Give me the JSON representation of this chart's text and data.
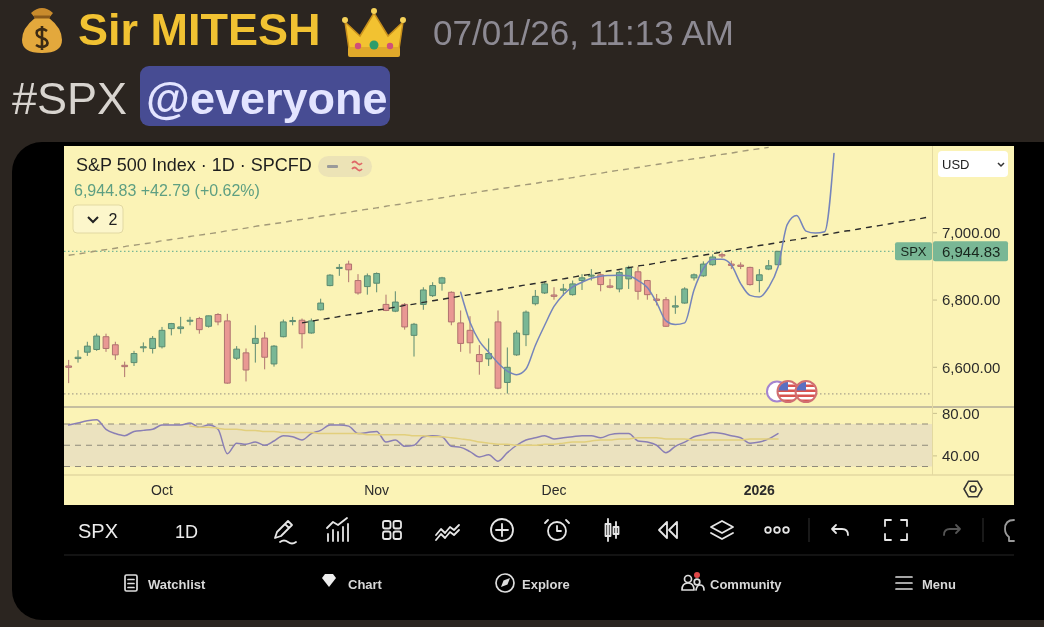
{
  "chart_data": [
    {
      "type": "other",
      "title": "Sir MITESH",
      "subtitle": "07/01/26, 11:13 AM",
      "annotations": [
        "#SPX",
        "@everyone"
      ]
    },
    {
      "type": "candlestick",
      "title": "S&P 500 Index · 1D · SPCFD",
      "subtitle": "6,944.83 +42.79 (+0.62%)",
      "categories": [
        null,
        null,
        null,
        null,
        null,
        null,
        null,
        null,
        null,
        null,
        null,
        null,
        null,
        null,
        null,
        null,
        null,
        null,
        null,
        null,
        null,
        null,
        null,
        null,
        null,
        null,
        null,
        null,
        null,
        null,
        null,
        null,
        null,
        null,
        null,
        null,
        null,
        null,
        null,
        null,
        null,
        null,
        null,
        null,
        null,
        null,
        null,
        null,
        null,
        null,
        null,
        null,
        null,
        null,
        null,
        null,
        null,
        null,
        null,
        null,
        null,
        null,
        null,
        null,
        null,
        null,
        null,
        null,
        null,
        null,
        null,
        null,
        null,
        null,
        null,
        null,
        null,
        null,
        null,
        null,
        null,
        null,
        null,
        null,
        null,
        null,
        null,
        null,
        null,
        null,
        null,
        null,
        null
      ],
      "ylim": [
        6482,
        7258
      ],
      "yticks": [
        {
          "value": 6600,
          "label": "6,600.00"
        },
        {
          "value": 6800,
          "label": "6,800.00"
        },
        {
          "value": 7000,
          "label": "7,000.00"
        }
      ],
      "tick_labels": "y",
      "series": [
        {
          "type": "candlestick",
          "ohlc": [
            [
              6604,
              6622,
              6553,
              6600
            ],
            [
              6626,
              6651,
              6614,
              6630
            ],
            [
              6645,
              6676,
              6634,
              6663
            ],
            [
              6653,
              6700,
              6649,
              6693
            ],
            [
              6691,
              6700,
              6646,
              6656
            ],
            [
              6667,
              6676,
              6622,
              6637
            ],
            [
              6606,
              6617,
              6571,
              6602
            ],
            [
              6614,
              6649,
              6604,
              6641
            ],
            [
              6658,
              6674,
              6645,
              6661
            ],
            [
              6656,
              6693,
              6641,
              6686
            ],
            [
              6661,
              6720,
              6656,
              6710
            ],
            [
              6715,
              6732,
              6695,
              6730
            ],
            [
              6715,
              6750,
              6700,
              6720
            ],
            [
              6737,
              6750,
              6725,
              6740
            ],
            [
              6745,
              6750,
              6700,
              6712
            ],
            [
              6722,
              6754,
              6718,
              6753
            ],
            [
              6757,
              6761,
              6725,
              6735
            ],
            [
              6738,
              6759,
              6551,
              6553
            ],
            [
              6627,
              6663,
              6622,
              6654
            ],
            [
              6643,
              6656,
              6558,
              6592
            ],
            [
              6671,
              6725,
              6614,
              6686
            ],
            [
              6687,
              6705,
              6594,
              6630
            ],
            [
              6610,
              6666,
              6602,
              6663
            ],
            [
              6691,
              6742,
              6689,
              6735
            ],
            [
              6736,
              6750,
              6725,
              6739
            ],
            [
              6740,
              6745,
              6656,
              6700
            ],
            [
              6702,
              6745,
              6700,
              6738
            ],
            [
              6771,
              6804,
              6769,
              6791
            ],
            [
              6843,
              6877,
              6841,
              6874
            ],
            [
              6894,
              6907,
              6872,
              6897
            ],
            [
              6907,
              6917,
              6853,
              6890
            ],
            [
              6858,
              6877,
              6816,
              6821
            ],
            [
              6840,
              6879,
              6816,
              6872
            ],
            [
              6850,
              6882,
              6823,
              6879
            ],
            [
              6787,
              6816,
              6767,
              6769
            ],
            [
              6767,
              6826,
              6764,
              6794
            ],
            [
              6787,
              6791,
              6712,
              6720
            ],
            [
              6695,
              6732,
              6632,
              6728
            ],
            [
              6787,
              6838,
              6771,
              6830
            ],
            [
              6813,
              6853,
              6809,
              6843
            ],
            [
              6850,
              6869,
              6828,
              6866
            ],
            [
              6823,
              6826,
              6725,
              6735
            ],
            [
              6732,
              6769,
              6646,
              6671
            ],
            [
              6710,
              6752,
              6641,
              6673
            ],
            [
              6638,
              6666,
              6578,
              6617
            ],
            [
              6625,
              6686,
              6604,
              6641
            ],
            [
              6735,
              6769,
              6535,
              6538
            ],
            [
              6555,
              6659,
              6522,
              6600
            ],
            [
              6637,
              6710,
              6634,
              6702
            ],
            [
              6697,
              6769,
              6663,
              6764
            ],
            [
              6789,
              6830,
              6784,
              6811
            ],
            [
              6821,
              6856,
              6818,
              6848
            ],
            [
              6815,
              6838,
              6801,
              6811
            ],
            [
              6829,
              6848,
              6813,
              6833
            ],
            [
              6816,
              6858,
              6813,
              6848
            ],
            [
              6858,
              6877,
              6830,
              6866
            ],
            [
              6871,
              6892,
              6858,
              6874
            ],
            [
              6875,
              6879,
              6826,
              6846
            ],
            [
              6842,
              6863,
              6835,
              6838
            ],
            [
              6833,
              6887,
              6823,
              6882
            ],
            [
              6863,
              6902,
              6833,
              6897
            ],
            [
              6884,
              6899,
              6801,
              6826
            ],
            [
              6858,
              6860,
              6801,
              6816
            ],
            [
              6803,
              6818,
              6784,
              6799
            ],
            [
              6801,
              6809,
              6720,
              6722
            ],
            [
              6779,
              6813,
              6759,
              6783
            ],
            [
              6791,
              6838,
              6789,
              6833
            ],
            [
              6866,
              6879,
              6858,
              6875
            ],
            [
              6872,
              6915,
              6869,
              6907
            ],
            [
              6905,
              6936,
              6902,
              6928
            ],
            [
              6935,
              6941,
              6925,
              6931
            ],
            [
              6907,
              6917,
              6892,
              6903
            ],
            [
              6904,
              6912,
              6892,
              6900
            ],
            [
              6897,
              6899,
              6843,
              6846
            ],
            [
              6858,
              6892,
              6823,
              6875
            ],
            [
              6892,
              6919,
              6889,
              6902
            ],
            [
              6905,
              6946,
              6905,
              6944.83
            ],
            null,
            null,
            null,
            null,
            null,
            null,
            null,
            null,
            null,
            null,
            null,
            null,
            null,
            null,
            null,
            null
          ],
          "colors": [
            "#e99893",
            "#79b795",
            "#79b795",
            "#79b795",
            "#e99893",
            "#e99893",
            "#e99893",
            "#79b795",
            "#79b795",
            "#79b795",
            "#79b795",
            "#79b795",
            "#79b795",
            "#79b795",
            "#e99893",
            "#79b795",
            "#e99893",
            "#e99893",
            "#79b795",
            "#e99893",
            "#79b795",
            "#e99893",
            "#79b795",
            "#79b795",
            "#79b795",
            "#e99893",
            "#79b795",
            "#79b795",
            "#79b795",
            "#79b795",
            "#e99893",
            "#e99893",
            "#79b795",
            "#79b795",
            "#e99893",
            "#79b795",
            "#e99893",
            "#79b795",
            "#79b795",
            "#79b795",
            "#79b795",
            "#e99893",
            "#e99893",
            "#e99893",
            "#e99893",
            "#79b795",
            "#e99893",
            "#79b795",
            "#79b795",
            "#79b795",
            "#79b795",
            "#79b795",
            "#e99893",
            "#79b795",
            "#79b795",
            "#79b795",
            "#79b795",
            "#e99893",
            "#e99893",
            "#79b795",
            "#79b795",
            "#e99893",
            "#e99893",
            "#e99893",
            "#e99893",
            "#79b795",
            "#79b795",
            "#79b795",
            "#79b795",
            "#79b795",
            "#e99893",
            "#e99893",
            "#e99893",
            "#e99893",
            "#79b795",
            "#79b795",
            "#79b795",
            null,
            null,
            null,
            null,
            null,
            null,
            null,
            null,
            null,
            null,
            null,
            null,
            null,
            null,
            null,
            null
          ]
        },
        {
          "type": "line",
          "color": "#a39a78",
          "line_style": "dashed",
          "values": [
            6933,
            6937,
            6941,
            6946,
            6950,
            6954,
            6959,
            6963,
            6967,
            6971,
            6976,
            6980,
            6984,
            6989,
            6993,
            6997,
            7001,
            7006,
            7010,
            7014,
            7019,
            7023,
            7027,
            7031,
            7036,
            7040,
            7044,
            7049,
            7053,
            7057,
            7061,
            7066,
            7070,
            7074,
            7079,
            7083,
            7087,
            7092,
            7096,
            7100,
            7104,
            7109,
            7113,
            7117,
            7122,
            7126,
            7130,
            7134,
            7139,
            7143,
            7147,
            7152,
            7156,
            7160,
            7164,
            7169,
            7173,
            7177,
            7182,
            7186,
            7190,
            7194,
            7199,
            7203,
            7207,
            7212,
            7216,
            7220,
            7224,
            7229,
            7233,
            7237,
            7242,
            7246,
            7250,
            7254,
            null,
            null,
            null,
            null,
            null,
            null,
            null,
            null,
            null,
            null,
            null,
            null,
            null,
            null,
            null,
            null,
            null
          ]
        },
        {
          "type": "line",
          "color": "#2b2b2b",
          "line_style": "dashed",
          "values": [
            null,
            null,
            null,
            null,
            null,
            null,
            null,
            null,
            null,
            null,
            null,
            null,
            null,
            null,
            null,
            null,
            null,
            null,
            null,
            null,
            null,
            null,
            null,
            null,
            null,
            6732,
            6737,
            6742,
            6746,
            6751,
            6756,
            6760,
            6765,
            6770,
            6774,
            6779,
            6784,
            6788,
            6793,
            6798,
            6802,
            6807,
            6812,
            6816,
            6821,
            6826,
            6830,
            6835,
            6840,
            6845,
            6849,
            6854,
            6859,
            6863,
            6868,
            6873,
            6877,
            6882,
            6887,
            6891,
            6896,
            6901,
            6905,
            6910,
            6915,
            6919,
            6924,
            6929,
            6933,
            6938,
            6943,
            6948,
            6952,
            6957,
            6962,
            6966,
            6971,
            6976,
            6980,
            6985,
            6990,
            6994,
            6999,
            7004,
            7008,
            7013,
            7018,
            7022,
            7027,
            7032,
            7036,
            7041,
            7046
          ]
        },
        {
          "type": "line",
          "color": "#7584bb",
          "values": [
            null,
            null,
            null,
            null,
            null,
            null,
            null,
            null,
            null,
            null,
            null,
            null,
            null,
            null,
            null,
            null,
            null,
            null,
            null,
            null,
            null,
            null,
            null,
            null,
            null,
            null,
            null,
            null,
            null,
            null,
            null,
            null,
            null,
            null,
            null,
            null,
            null,
            null,
            null,
            null,
            null,
            null,
            6823,
            6734,
            6678,
            6645,
            6613,
            6589,
            6578,
            6595,
            6665,
            6725,
            6781,
            6816,
            6839,
            6853,
            6865,
            6871,
            6873,
            6874,
            6872,
            6858,
            6837,
            6792,
            6738,
            6727,
            6732,
            6830,
            6893,
            6921,
            6921,
            6904,
            6849,
            6814,
            6809,
            6838,
            6898,
            7025,
            7051,
            7005,
            6999,
            7003,
            7236,
            null,
            null,
            null,
            null,
            null,
            null,
            null,
            null,
            null,
            null
          ]
        }
      ],
      "ref_lines": [
        {
          "axis": "y",
          "value": 6944.83,
          "label": "SPX",
          "color": "#79b795",
          "line_style": "dotted"
        },
        {
          "axis": "y",
          "value": 6521,
          "color": "#a9a38c",
          "line_style": "dotted"
        }
      ],
      "annotations": [
        "2",
        "USD",
        "6,944.83"
      ]
    },
    {
      "type": "line",
      "categories": [
        null,
        null,
        null,
        null,
        null,
        null,
        null,
        null,
        null,
        null,
        "Oct",
        null,
        null,
        null,
        null,
        null,
        null,
        null,
        null,
        null,
        null,
        null,
        null,
        null,
        null,
        null,
        null,
        null,
        null,
        null,
        null,
        null,
        null,
        "Nov",
        null,
        null,
        null,
        null,
        null,
        null,
        null,
        null,
        null,
        null,
        null,
        null,
        null,
        null,
        null,
        null,
        null,
        null,
        "Dec",
        null,
        null,
        null,
        null,
        null,
        null,
        null,
        null,
        null,
        null,
        null,
        null,
        null,
        null,
        null,
        null,
        null,
        null,
        null,
        null,
        null,
        "2026",
        null,
        null,
        null,
        null,
        null,
        null,
        null,
        null,
        null,
        null,
        null,
        null,
        null,
        null,
        null,
        null,
        null,
        null
      ],
      "ylim": [
        22,
        86
      ],
      "yticks": [
        {
          "value": 40,
          "label": "40.00"
        },
        {
          "value": 80,
          "label": "80.00"
        }
      ],
      "series": [
        {
          "type": "line",
          "color": "#8a7fb4",
          "values": [
            69,
            71,
            73,
            74,
            65,
            61,
            59,
            63,
            64,
            65,
            69,
            69,
            69,
            71,
            67,
            69,
            65,
            42,
            52,
            51,
            53,
            50,
            54,
            59,
            58,
            55,
            61,
            64,
            69,
            69,
            68,
            61,
            62,
            63,
            53,
            55,
            49,
            50,
            58,
            59,
            58,
            49,
            48,
            44,
            39,
            41,
            35,
            43,
            50,
            55,
            57,
            59,
            56,
            57,
            58,
            59,
            59,
            57,
            60,
            61,
            61,
            54,
            53,
            50,
            43,
            49,
            53,
            58,
            60,
            62,
            61,
            59,
            57,
            52,
            53,
            56,
            61,
            null,
            null,
            null,
            null,
            null,
            null,
            null,
            null,
            null,
            null,
            null,
            null,
            null,
            null,
            null,
            null
          ]
        },
        {
          "type": "line",
          "color": "#e2cf7c",
          "values": [
            null,
            null,
            null,
            null,
            null,
            null,
            null,
            null,
            null,
            null,
            null,
            null,
            null,
            68,
            67,
            67,
            66,
            65,
            65,
            64,
            64,
            63,
            63,
            62,
            62,
            62,
            62,
            61,
            61,
            61,
            61,
            61,
            60,
            60,
            60,
            60,
            60,
            59,
            59,
            58,
            58,
            57,
            56,
            55,
            53,
            52,
            51,
            51,
            50,
            50,
            50,
            51,
            51,
            52,
            53,
            53,
            54,
            55,
            55,
            56,
            56,
            57,
            57,
            57,
            56,
            56,
            56,
            55,
            55,
            55,
            55,
            55,
            55,
            56,
            56,
            56,
            56,
            null,
            null,
            null,
            null,
            null,
            null,
            null,
            null,
            null,
            null,
            null,
            null,
            null,
            null,
            null,
            null
          ]
        }
      ],
      "bands": [
        {
          "axis": "y",
          "from": 30,
          "to": 70,
          "color": "#ebe2bf"
        }
      ],
      "ref_lines": [
        {
          "axis": "y",
          "value": 70,
          "color": "#8f8a7b",
          "line_style": "dashed"
        },
        {
          "axis": "y",
          "value": 50,
          "color": "#8f8a7b",
          "line_style": "dashed"
        },
        {
          "axis": "y",
          "value": 30,
          "color": "#8f8a7b",
          "line_style": "dashed"
        }
      ]
    },
    {
      "type": "other",
      "annotations": [
        "SPX",
        "1D",
        "Watchlist",
        "Chart",
        "Explore",
        "Community",
        "Menu"
      ]
    }
  ]
}
